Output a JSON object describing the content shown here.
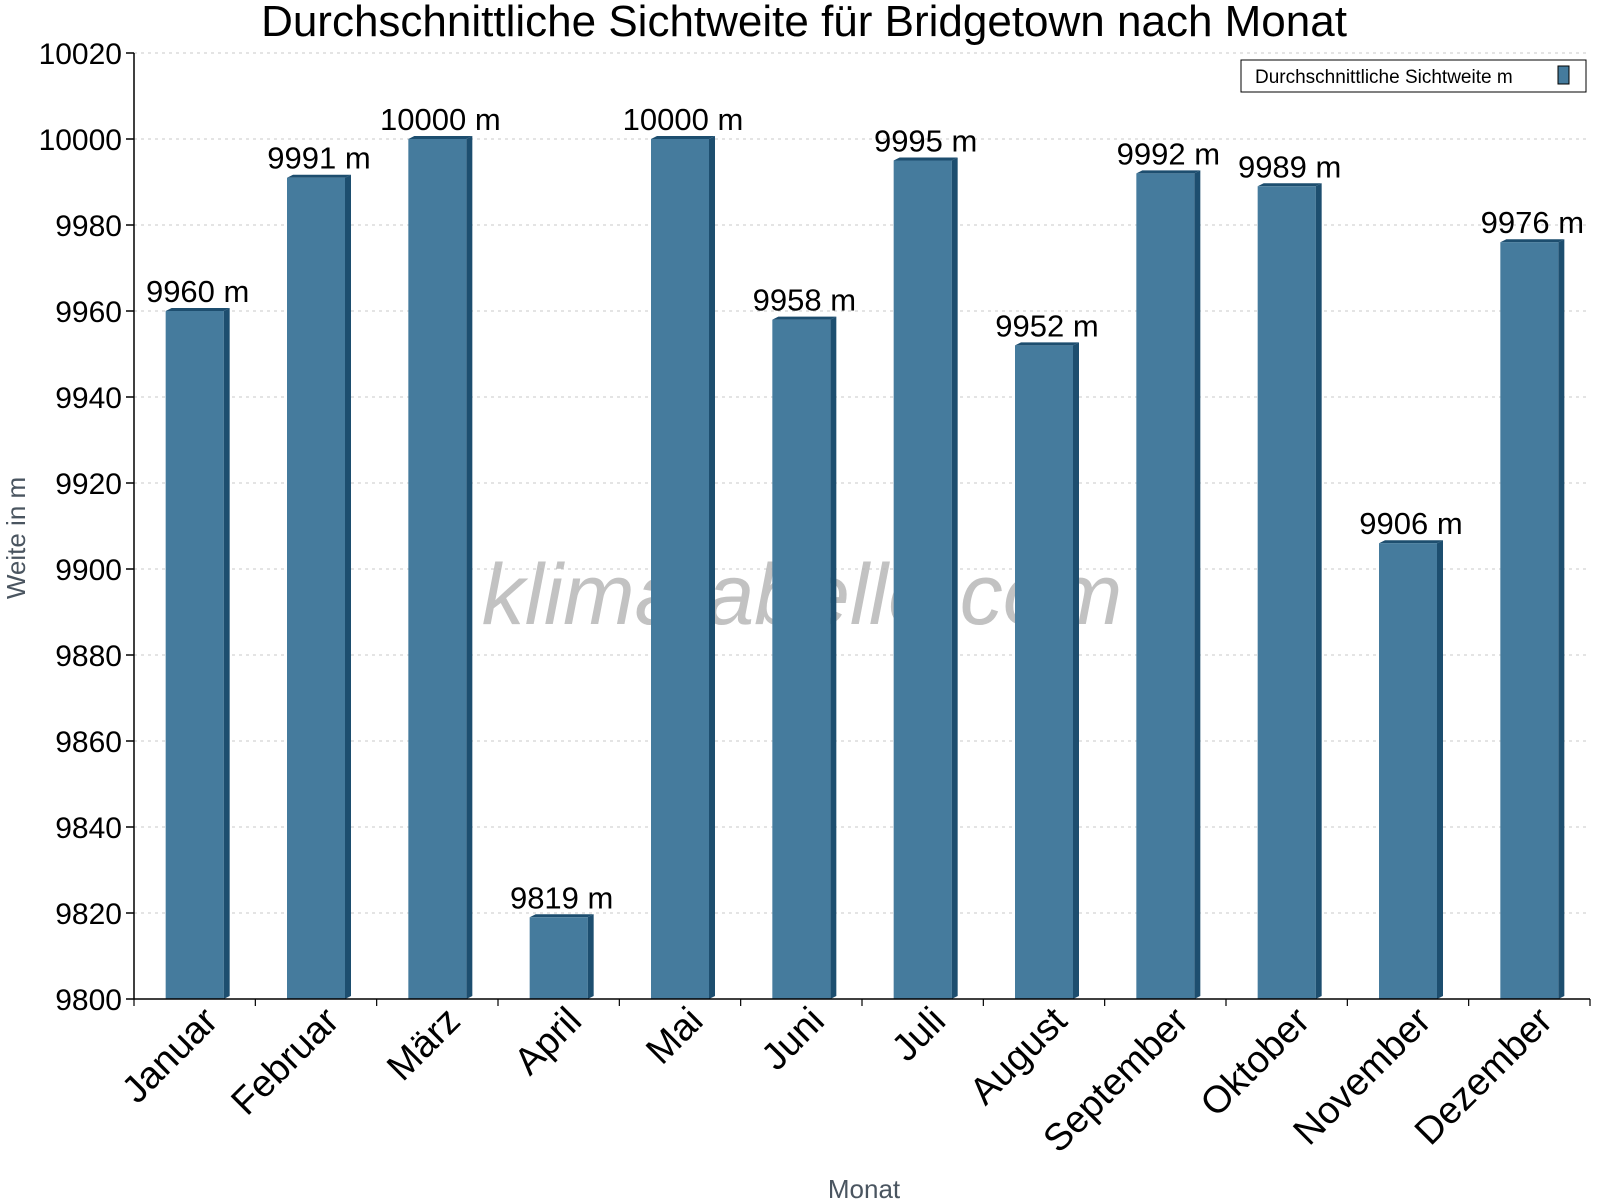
{
  "chart_data": {
    "type": "bar",
    "title": "Durchschnittliche Sichtweite für Bridgetown nach Monat",
    "xlabel": "Monat",
    "ylabel": "Weite in m",
    "categories": [
      "Januar",
      "Februar",
      "März",
      "April",
      "Mai",
      "Juni",
      "Juli",
      "August",
      "September",
      "Oktober",
      "November",
      "Dezember"
    ],
    "series": [
      {
        "name": "Durchschnittliche Sichtweite m",
        "values": [
          9960,
          9991,
          10000,
          9819,
          10000,
          9958,
          9995,
          9952,
          9992,
          9989,
          9906,
          9976
        ],
        "value_labels": [
          "9960 m",
          "9991 m",
          "10000 m",
          "9819 m",
          "10000 m",
          "9958 m",
          "9995 m",
          "9952 m",
          "9992 m",
          "9989 m",
          "9906 m",
          "9976 m"
        ],
        "color": "#457b9d",
        "side_color": "#1d4e6f"
      }
    ],
    "ylim": [
      9800,
      10020
    ],
    "yticks": [
      9800,
      9820,
      9840,
      9860,
      9880,
      9900,
      9920,
      9940,
      9960,
      9980,
      10000,
      10020
    ],
    "ytick_labels": [
      "9800",
      "9820",
      "9840",
      "9860",
      "9880",
      "9900",
      "9920",
      "9940",
      "9960",
      "9980",
      "10000",
      "10020"
    ],
    "grid": true,
    "legend_position": "top-right",
    "watermark": "klimatabelle.com"
  }
}
